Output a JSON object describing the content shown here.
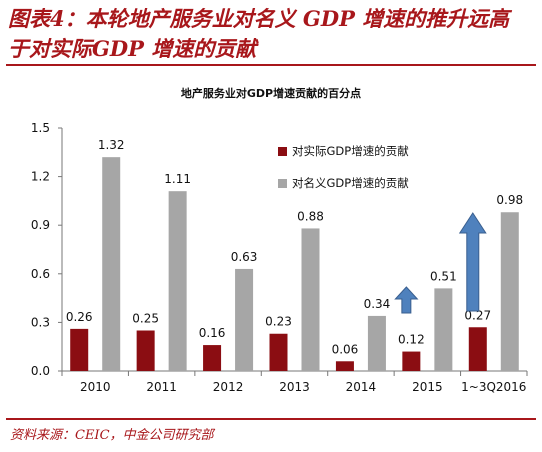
{
  "header": {
    "title": "图表4：本轮地产服务业对名义 GDP 增速的推升远高于对实际GDP 增速的贡献",
    "chart_title": "地产服务业对GDP增速贡献的百分点"
  },
  "footer": {
    "source": "资料来源：CEIC，中金公司研究部"
  },
  "colors": {
    "accent": "#a8171b",
    "real": "#8b0d12",
    "nominal": "#a6a6a6",
    "arrow": "#4f81bd"
  },
  "chart_data": {
    "type": "bar",
    "title": "地产服务业对GDP增速贡献的百分点",
    "categories": [
      "2010",
      "2011",
      "2012",
      "2013",
      "2014",
      "2015",
      "1~3Q2016"
    ],
    "series": [
      {
        "name": "对实际GDP增速的贡献",
        "values": [
          0.26,
          0.25,
          0.16,
          0.23,
          0.06,
          0.12,
          0.27
        ],
        "labels": [
          "0.26",
          "0.25",
          "0.16",
          "0.23",
          "0.06",
          "0.12",
          "0.27"
        ]
      },
      {
        "name": "对名义GDP增速的贡献",
        "values": [
          1.32,
          1.11,
          0.63,
          0.88,
          0.34,
          0.51,
          0.98
        ],
        "labels": [
          "1.32",
          "1.11",
          "0.63",
          "0.88",
          "0.34",
          "0.51",
          "0.98"
        ]
      }
    ],
    "yticks": [
      "0.0",
      "0.3",
      "0.6",
      "0.9",
      "1.2",
      "1.5"
    ],
    "ylim": [
      0,
      1.5
    ],
    "legend_position": "top-right",
    "grid": false,
    "annotations": [
      {
        "type": "up-arrow",
        "category": "2015"
      },
      {
        "type": "up-arrow",
        "category": "1~3Q2016"
      }
    ]
  }
}
